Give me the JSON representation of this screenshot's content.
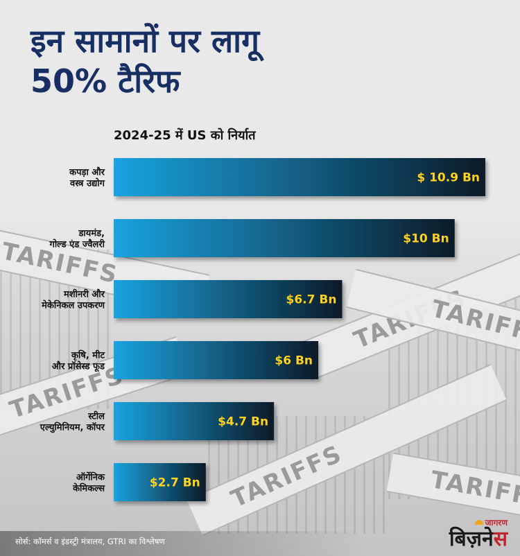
{
  "title": "इन सामानों पर लागू\n50% टैरिफ",
  "chart_data": {
    "type": "bar",
    "orientation": "horizontal",
    "title": "2024-25 में US को निर्यात",
    "categories": [
      [
        "कपड़ा और",
        "वस्त्र उद्योग"
      ],
      [
        "डायमंड,",
        "गोल्ड एंड ज्वैलरी"
      ],
      [
        "मशीनरी और",
        "मेकेनिकल उपकरण"
      ],
      [
        "कृषि, मीट",
        "और प्रॉसेस्ड फूड"
      ],
      [
        "स्टील",
        "एल्युमिनियम, कॉपर"
      ],
      [
        "ऑर्गेनिक",
        "केमिकल्स"
      ]
    ],
    "values": [
      10.9,
      10,
      6.7,
      6,
      4.7,
      2.7
    ],
    "value_labels": [
      "$ 10.9 Bn",
      "$10 Bn",
      "$6.7 Bn",
      "$6 Bn",
      "$4.7 Bn",
      "$2.7 Bn"
    ],
    "unit": "Bn",
    "xlim": [
      0,
      10.9
    ],
    "grid": false,
    "colors": {
      "bar_start": "#1aa3e0",
      "bar_end": "#0b1a27",
      "value_text": "#ffd21f",
      "title": "#172f63"
    }
  },
  "background_text": [
    "TARIFFS",
    "TARIFFS",
    "TARIFF",
    "TARIFFS",
    "TARIFFS",
    "TARIFFS"
  ],
  "source": "सोर्स: कॉमर्स व इंडस्ट्री मंत्रालय, GTRI का विश्लेषण",
  "logo": {
    "top": "जागरण",
    "main_prefix": "बिज़ने",
    "main_accent": "स"
  }
}
